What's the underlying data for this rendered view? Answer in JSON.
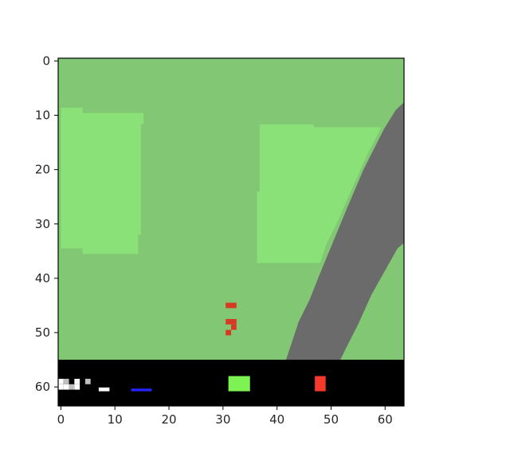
{
  "frame": {
    "rows": 64,
    "cols": 64,
    "x_ticks": [
      "0",
      "10",
      "20",
      "30",
      "40",
      "50",
      "60"
    ],
    "y_ticks": [
      "0",
      "10",
      "20",
      "30",
      "40",
      "50",
      "60"
    ],
    "x_tick_values": [
      0,
      10,
      20,
      30,
      40,
      50,
      60
    ],
    "y_tick_values": [
      0,
      10,
      20,
      30,
      40,
      50,
      60
    ]
  },
  "colors": {
    "grass": "#82c874",
    "grass_light": "#8ae178",
    "road": "#6b6b6b",
    "road_dark": "#5e5e5e",
    "hud_background": "#000000",
    "car": "#d63a22",
    "speed_bar": "#ffffff",
    "abs_bar": "#2424ff",
    "gyro_bar": "#7cf253",
    "steer_bar": "#f5392b",
    "axis": "#000000"
  },
  "scene": {
    "grass_patches": [
      {
        "name": "grass-patch-left",
        "points": [
          [
            0,
            8.6
          ],
          [
            4,
            8.6
          ],
          [
            4,
            9.6
          ],
          [
            15.3,
            9.6
          ],
          [
            15.3,
            11.6
          ],
          [
            14.8,
            11.6
          ],
          [
            14.8,
            32
          ],
          [
            14.3,
            32
          ],
          [
            14.3,
            35.5
          ],
          [
            4,
            35.5
          ],
          [
            4,
            34.5
          ],
          [
            0,
            34.5
          ]
        ]
      },
      {
        "name": "grass-patch-right",
        "points": [
          [
            36.8,
            11.7
          ],
          [
            46.8,
            11.7
          ],
          [
            46.8,
            12.2
          ],
          [
            59.3,
            12.2
          ],
          [
            58.5,
            13.8
          ],
          [
            56.8,
            17
          ],
          [
            55,
            21
          ],
          [
            53,
            25.5
          ],
          [
            51,
            30
          ],
          [
            49,
            34
          ],
          [
            48,
            37.2
          ],
          [
            36.3,
            37.2
          ],
          [
            36.3,
            24
          ],
          [
            36.8,
            24
          ]
        ]
      }
    ],
    "road": {
      "points": [
        [
          63.5,
          7.6
        ],
        [
          63.5,
          33.5
        ],
        [
          62.3,
          34.5
        ],
        [
          57.5,
          43
        ],
        [
          55,
          48.5
        ],
        [
          52.8,
          52.8
        ],
        [
          51.5,
          55.5
        ],
        [
          41.5,
          55.5
        ],
        [
          42.5,
          52.5
        ],
        [
          44,
          48
        ],
        [
          46,
          44
        ],
        [
          48,
          39
        ],
        [
          50.5,
          33
        ],
        [
          53,
          27
        ],
        [
          56,
          20
        ],
        [
          59.8,
          12.5
        ],
        [
          62,
          9
        ]
      ]
    },
    "car": {
      "pixels": [
        [
          31,
          45
        ],
        [
          32,
          45
        ],
        [
          31,
          48
        ],
        [
          32,
          48
        ],
        [
          32,
          49
        ],
        [
          31,
          50
        ]
      ]
    }
  },
  "hud": {
    "top_row": 55.5,
    "speed_indicator": {
      "pixels": [
        [
          0,
          59
        ],
        [
          1,
          59
        ],
        [
          0,
          60
        ],
        [
          1,
          60
        ],
        [
          2,
          60
        ],
        [
          3,
          59
        ],
        [
          3,
          60
        ],
        [
          5,
          59
        ]
      ],
      "level": 0.1
    },
    "speed_bar": {
      "x": [
        7.5,
        9.5
      ],
      "y": [
        60.6,
        61.3
      ],
      "level": 0.2
    },
    "abs_bar": {
      "x": [
        13.5,
        17.3
      ],
      "y": [
        60.8,
        61.3
      ],
      "level": 0.35
    },
    "gyro_bar": {
      "x": [
        31.5,
        35.5
      ],
      "y": [
        58.5,
        61.3
      ],
      "level": 0.6
    },
    "steer_bar": {
      "x": [
        47.5,
        49.5
      ],
      "y": [
        58.5,
        61.3
      ],
      "level": 0.3
    }
  }
}
